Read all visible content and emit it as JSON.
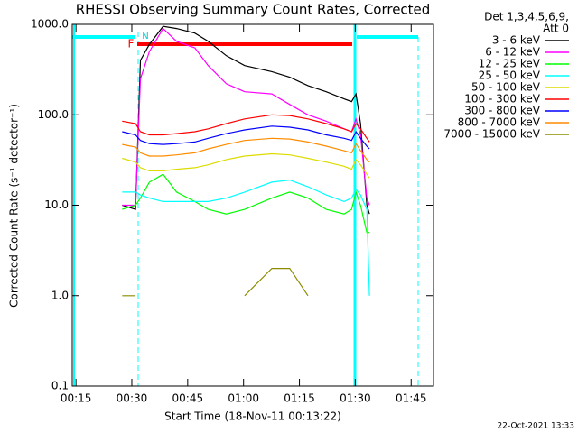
{
  "chart_data": {
    "type": "line",
    "title": "RHESSI Observing Summary Count Rates, Corrected",
    "x_label": "Start Time (18-Nov-11 00:13:22)",
    "y_label": "Corrected Count Rate (s⁻¹ detector⁻¹)",
    "legend_title": [
      "Det 1,3,4,5,6,9,",
      "Att 0"
    ],
    "annotations": [
      "F",
      "N"
    ],
    "timestamp": "22-Oct-2021 13:33",
    "log_y": true,
    "legend": "right",
    "xlim": [
      14,
      111
    ],
    "xticks": [
      {
        "value": 15,
        "label": "00:15"
      },
      {
        "value": 30,
        "label": "00:30"
      },
      {
        "value": 45,
        "label": "00:45"
      },
      {
        "value": 60,
        "label": "01:00"
      },
      {
        "value": 75,
        "label": "01:15"
      },
      {
        "value": 90,
        "label": "01:30"
      },
      {
        "value": 105,
        "label": "01:45"
      }
    ],
    "ylim": [
      0.1,
      1000
    ],
    "yticks": [
      0.1,
      {
        "value": 1,
        "label": "1.0"
      },
      {
        "value": 10,
        "label": "10.0"
      },
      {
        "value": 100,
        "label": "100.0"
      },
      {
        "value": 1000,
        "label": "1000.0"
      }
    ],
    "x": [
      27.4,
      31,
      32.3,
      34.7,
      38.4,
      42,
      46.9,
      50.5,
      55.4,
      60.3,
      67.6,
      72.4,
      77.3,
      82.2,
      87,
      89,
      90.2,
      91.4,
      93.1,
      93.8
    ],
    "series": [
      {
        "name": "3 - 6 keV",
        "color": "#000000",
        "values": [
          10,
          9,
          400,
          600,
          950,
          900,
          800,
          650,
          450,
          350,
          300,
          260,
          210,
          180,
          150,
          140,
          170,
          80,
          10,
          8
        ]
      },
      {
        "name": "6 - 12 keV",
        "color": "#ff00ff",
        "values": [
          10,
          10,
          250,
          500,
          900,
          650,
          550,
          350,
          220,
          180,
          170,
          130,
          100,
          85,
          70,
          65,
          90,
          60,
          12,
          10
        ]
      },
      {
        "name": "12 - 25 keV",
        "color": "#00ff00",
        "values": [
          9,
          10,
          12,
          18,
          22,
          14,
          11,
          9,
          8,
          9,
          12,
          14,
          12,
          9,
          8,
          9,
          14,
          10,
          5,
          5
        ]
      },
      {
        "name": "25 - 50 keV",
        "color": "#00ffff",
        "values": [
          14,
          14,
          13,
          12,
          11,
          11,
          11,
          11,
          12,
          14,
          18,
          19,
          16,
          13,
          11,
          12,
          15,
          13,
          9,
          1
        ]
      },
      {
        "name": "50 - 100 keV",
        "color": "#dcdc00",
        "values": [
          33,
          30,
          26,
          24,
          24,
          25,
          26,
          28,
          32,
          35,
          37,
          36,
          33,
          30,
          27,
          25,
          32,
          28,
          22,
          20
        ]
      },
      {
        "name": "100 - 300 keV",
        "color": "#ff0000",
        "values": [
          85,
          80,
          65,
          60,
          60,
          62,
          65,
          70,
          80,
          90,
          100,
          98,
          90,
          80,
          70,
          65,
          80,
          70,
          55,
          50
        ]
      },
      {
        "name": "300 - 800 keV",
        "color": "#0000ff",
        "values": [
          65,
          60,
          52,
          48,
          47,
          48,
          50,
          55,
          62,
          68,
          75,
          73,
          68,
          60,
          55,
          52,
          65,
          55,
          45,
          42
        ]
      },
      {
        "name": "800 - 7000 keV",
        "color": "#ff8c00",
        "values": [
          47,
          44,
          38,
          35,
          35,
          36,
          38,
          42,
          47,
          52,
          55,
          54,
          50,
          45,
          40,
          38,
          48,
          40,
          32,
          30
        ]
      },
      {
        "name": "7000 - 15000 keV",
        "color": "#8c8c00",
        "values": [
          1,
          1,
          null,
          null,
          null,
          null,
          null,
          null,
          null,
          1,
          2,
          2,
          1,
          null,
          null,
          null,
          null,
          null,
          null,
          null
        ]
      }
    ]
  }
}
